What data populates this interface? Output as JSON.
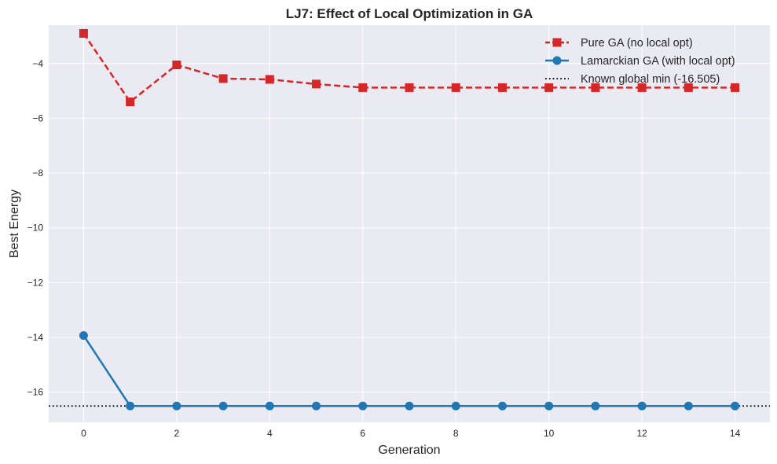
{
  "chart_data": {
    "type": "line",
    "title": "LJ7: Effect of Local Optimization in GA",
    "xlabel": "Generation",
    "ylabel": "Best Energy",
    "xlim": [
      -0.75,
      14.75
    ],
    "ylim": [
      -17.1,
      -2.6
    ],
    "x_ticks": [
      0,
      2,
      4,
      6,
      8,
      10,
      12,
      14
    ],
    "y_ticks": [
      -16,
      -14,
      -12,
      -10,
      -8,
      -6,
      -4
    ],
    "grid": true,
    "legend_position": "top-right",
    "x": [
      0,
      1,
      2,
      3,
      4,
      5,
      6,
      7,
      8,
      9,
      10,
      11,
      12,
      13,
      14
    ],
    "series": [
      {
        "name": "Pure GA (no local opt)",
        "color": "#d62728",
        "marker": "square",
        "line_style": "dashed",
        "values": [
          -2.9,
          -5.4,
          -4.05,
          -4.55,
          -4.58,
          -4.75,
          -4.88,
          -4.88,
          -4.88,
          -4.88,
          -4.88,
          -4.88,
          -4.88,
          -4.88,
          -4.88
        ]
      },
      {
        "name": "Lamarckian GA (with local opt)",
        "color": "#1f77b4",
        "marker": "circle",
        "line_style": "solid",
        "values": [
          -13.93,
          -16.505,
          -16.505,
          -16.505,
          -16.505,
          -16.505,
          -16.505,
          -16.505,
          -16.505,
          -16.505,
          -16.505,
          -16.505,
          -16.505,
          -16.505,
          -16.505
        ]
      }
    ],
    "reference_line": {
      "name": "Known global min (-16.505)",
      "value": -16.505,
      "color": "#000000",
      "line_style": "dotted"
    }
  }
}
